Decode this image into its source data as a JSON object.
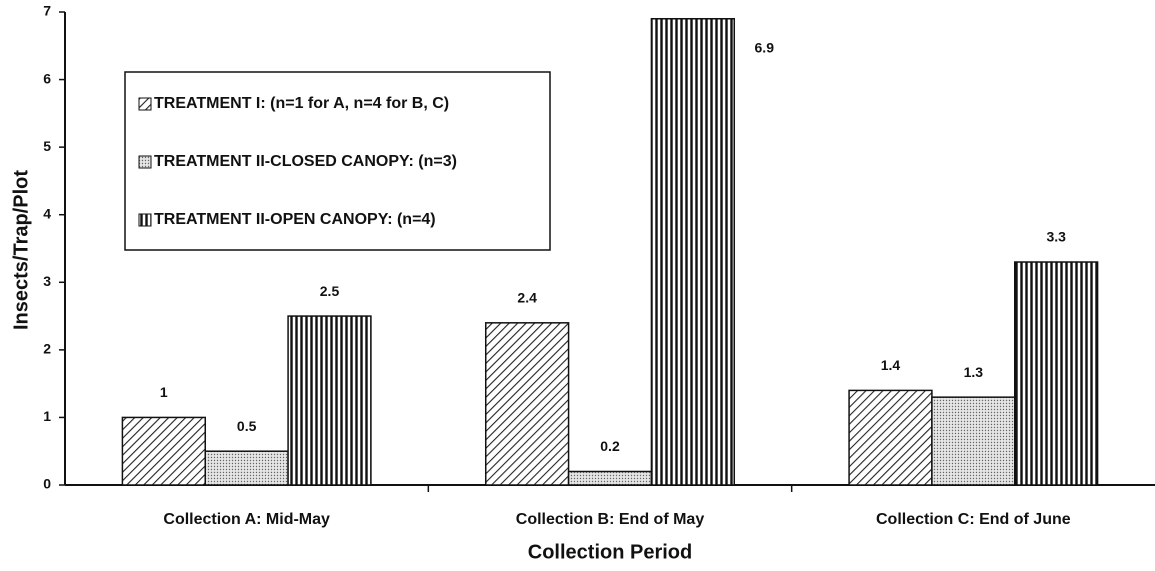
{
  "chart_data": {
    "type": "bar",
    "x_label": "Collection Period",
    "y_label": "Insects/Trap/Plot",
    "categories": [
      "Collection A: Mid-May",
      "Collection B: End of May",
      "Collection C: End of June"
    ],
    "series": [
      {
        "name": "TREATMENT I: (n=1 for A, n=4 for B, C)",
        "color": "#222222",
        "pattern": "diagonal",
        "values": [
          1,
          2.4,
          1.4
        ]
      },
      {
        "name": "TREATMENT II-CLOSED CANOPY: (n=3)",
        "color": "#555555",
        "pattern": "dots",
        "values": [
          0.5,
          0.2,
          1.3
        ]
      },
      {
        "name": "TREATMENT II-OPEN CANOPY: (n=4)",
        "color": "#111111",
        "pattern": "vertical",
        "values": [
          2.5,
          6.9,
          3.3
        ]
      }
    ],
    "ylim": [
      0,
      7
    ],
    "yticks": [
      0,
      1,
      2,
      3,
      4,
      5,
      6,
      7
    ],
    "grid": false,
    "legend": "upper left"
  }
}
